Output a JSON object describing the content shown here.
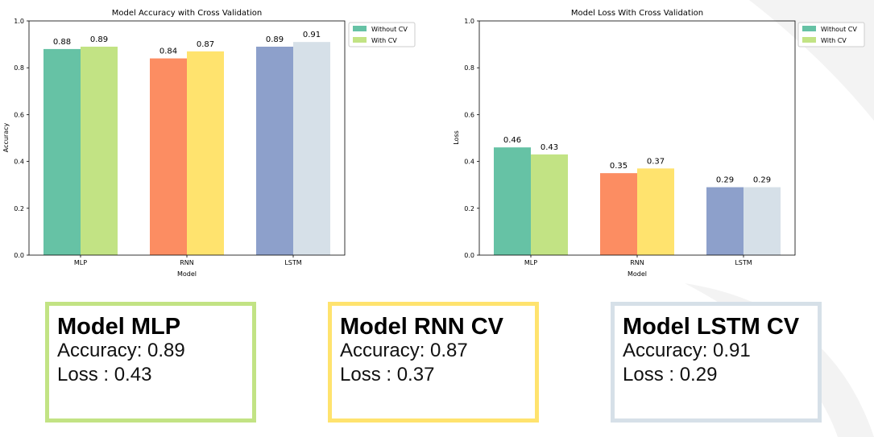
{
  "legend_labels": [
    "Without CV",
    "With CV"
  ],
  "chart_data": [
    {
      "type": "bar",
      "title": "Model Accuracy with Cross Validation",
      "xlabel": "Model",
      "ylabel": "Accuracy",
      "ylim": [
        0,
        1.0
      ],
      "yticks": [
        "0.0",
        "0.2",
        "0.4",
        "0.6",
        "0.8",
        "1.0"
      ],
      "categories": [
        "MLP",
        "RNN",
        "LSTM"
      ],
      "series": [
        {
          "name": "Without CV",
          "values": [
            0.88,
            0.84,
            0.89
          ],
          "labels": [
            "0.88",
            "0.84",
            "0.89"
          ]
        },
        {
          "name": "With CV",
          "values": [
            0.89,
            0.87,
            0.91
          ],
          "labels": [
            "0.89",
            "0.87",
            "0.91"
          ]
        }
      ],
      "bar_colors": [
        [
          "#66c2a5",
          "#c2e384"
        ],
        [
          "#fc8d62",
          "#ffe36e"
        ],
        [
          "#8da0cb",
          "#d6e0e8"
        ]
      ],
      "legend_position": "outside-top-right",
      "grid": false
    },
    {
      "type": "bar",
      "title": "Model Loss With Cross Validation",
      "xlabel": "Model",
      "ylabel": "Loss",
      "ylim": [
        0,
        1.0
      ],
      "yticks": [
        "0.0",
        "0.2",
        "0.4",
        "0.6",
        "0.8",
        "1.0"
      ],
      "categories": [
        "MLP",
        "RNN",
        "LSTM"
      ],
      "series": [
        {
          "name": "Without CV",
          "values": [
            0.46,
            0.35,
            0.29
          ],
          "labels": [
            "0.46",
            "0.35",
            "0.29"
          ]
        },
        {
          "name": "With CV",
          "values": [
            0.43,
            0.37,
            0.29
          ],
          "labels": [
            "0.43",
            "0.37",
            "0.29"
          ]
        }
      ],
      "bar_colors": [
        [
          "#66c2a5",
          "#c2e384"
        ],
        [
          "#fc8d62",
          "#ffe36e"
        ],
        [
          "#8da0cb",
          "#d6e0e8"
        ]
      ],
      "legend_position": "outside-top-right",
      "grid": false
    }
  ],
  "summary_cards": [
    {
      "title": "Model MLP",
      "accuracy": "Accuracy: 0.89",
      "loss": "Loss : 0.43",
      "border_color": "#c2e384"
    },
    {
      "title": "Model RNN CV",
      "accuracy": "Accuracy: 0.87",
      "loss": "Loss : 0.37",
      "border_color": "#ffe36e"
    },
    {
      "title": "Model LSTM CV",
      "accuracy": "Accuracy: 0.91",
      "loss": "Loss : 0.29",
      "border_color": "#d6e0e8"
    }
  ]
}
